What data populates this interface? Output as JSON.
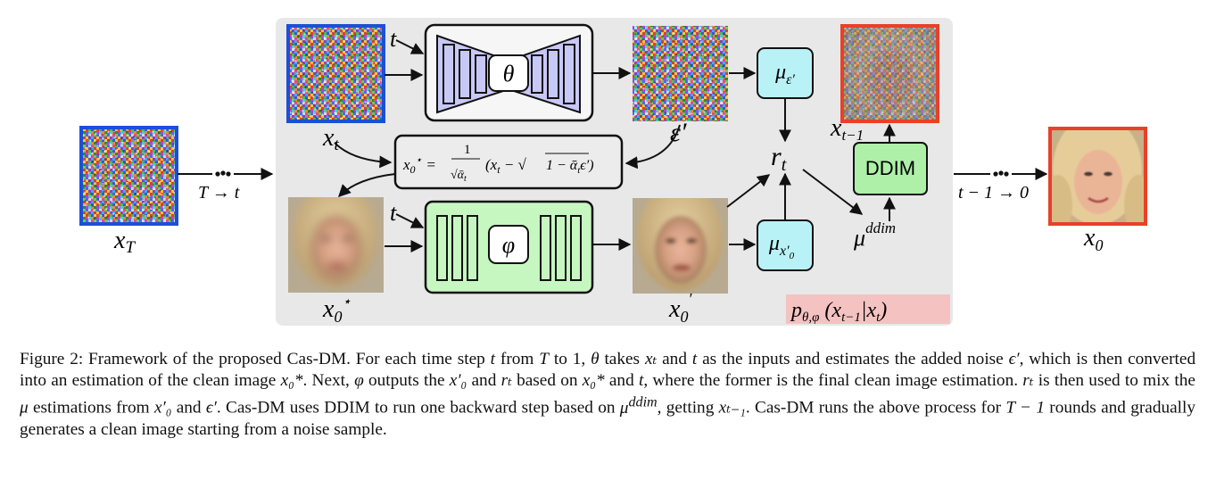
{
  "figure": {
    "labels": {
      "x_T": "x_T",
      "x_t": "x_t",
      "x0_star": "x₀*",
      "x0_prime": "x′₀",
      "eps_prime": "ε′",
      "x_t_minus_1": "x_{t−1}",
      "x_0": "x₀",
      "t_to": "T → t",
      "t1_to_0": "t − 1 → 0",
      "t_in_top": "t",
      "t_in_bottom": "t",
      "theta": "θ",
      "phi": "φ",
      "mu_eps": "μ_ε′",
      "mu_x0": "μ_x′₀",
      "r_t": "r_t",
      "mu_ddim": "μ^ddim",
      "ddim": "DDIM",
      "p_label": "p_θ,φ (x_{t−1}|x_t)",
      "formula": "x₀* = 1/√ᾱ_t (x_t − √(1 − ᾱ_t) ε′)"
    },
    "colors": {
      "panel_bg": "#e8e8e8",
      "theta_fill": "#c8c8f7",
      "phi_fill": "#c6f7c0",
      "mu_fill": "#b8f2f6",
      "ddim_fill": "#aef0a8",
      "noise_border": "#1d4fd6",
      "out_border": "#e8402a",
      "p_bg": "#f5c2c2"
    }
  },
  "caption": {
    "p1": "Figure 2: Framework of the proposed Cas-DM. For each time step",
    "p2": "from",
    "p3": "to 1,",
    "p4": "takes",
    "p5": "and",
    "p6": "as the inputs and estimates the added noise",
    "p7": ", which is then converted into an estimation of the clean image",
    "p8": ". Next,",
    "p9": "outputs the",
    "p10": "and",
    "p11": "based on",
    "p12": "and",
    "p13": ", where the former is the final clean image estimation.",
    "p14": "is then used to mix the",
    "p15": "estimations from",
    "p16": "and",
    "p17": ". Cas-DM uses DDIM to run one backward step based on",
    "p18": ", getting",
    "p19": ". Cas-DM runs the above process for",
    "p20": "rounds and gradually generates a clean image starting from a noise sample.",
    "m_t": "t",
    "m_T": "T",
    "m_theta": "θ",
    "m_phi": "φ",
    "m_mu": "μ",
    "m_eps": "ϵ′",
    "m_x0star": "x₀*",
    "m_x0p": "x′₀",
    "m_rt": "rₜ",
    "m_xt": "xₜ",
    "m_muddim": "μ",
    "m_ddim_sup": "ddim",
    "m_xtm1": "xₜ₋₁",
    "m_Tm1": "T − 1"
  }
}
